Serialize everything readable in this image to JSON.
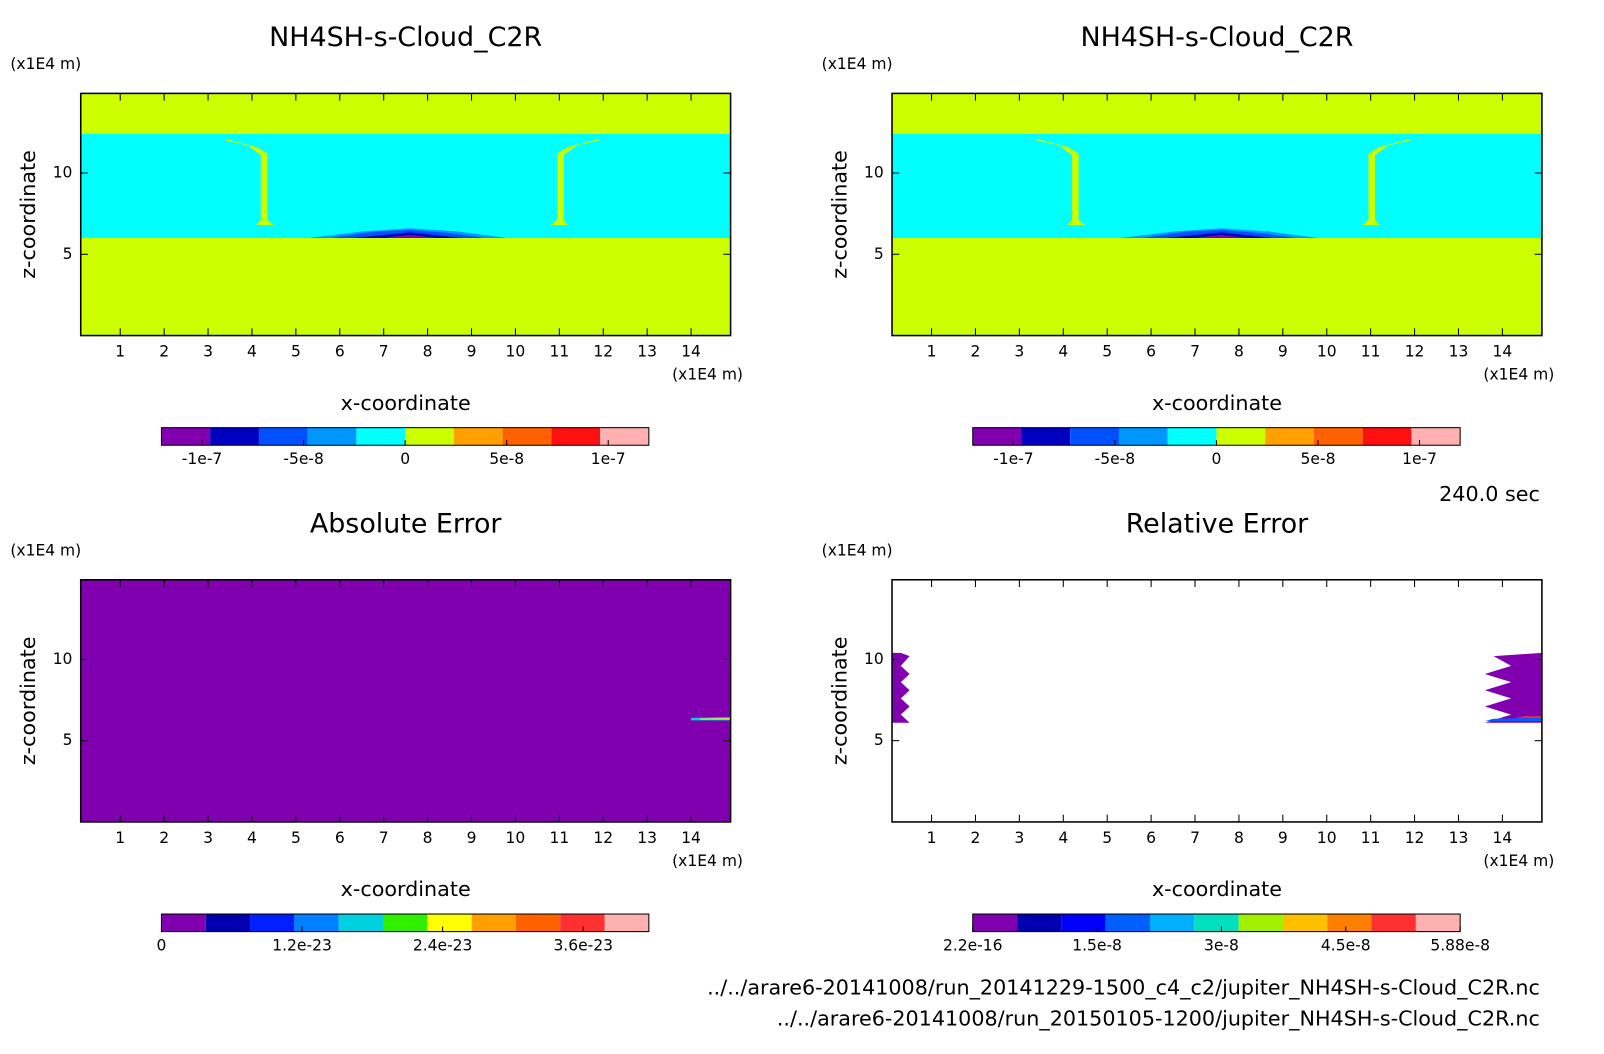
{
  "chart_data": [
    {
      "type": "contour",
      "title": "NH4SH-s-Cloud_C2R",
      "x_label": "x-coordinate",
      "y_label": "z-coordinate",
      "x_unit": "(x1E4 m)",
      "y_unit": "(x1E4 m)",
      "xlim": [
        0.1,
        14.9
      ],
      "ylim": [
        0,
        14.9
      ],
      "xticks": [
        1,
        2,
        3,
        4,
        5,
        6,
        7,
        8,
        9,
        10,
        11,
        12,
        13,
        14
      ],
      "yticks": [
        5,
        10
      ],
      "background": 5,
      "regions": [
        {
          "level": 4,
          "points": [
            [
              0.1,
              6
            ],
            [
              14.9,
              6
            ],
            [
              14.9,
              12.4
            ],
            [
              0.1,
              12.4
            ]
          ]
        },
        {
          "level": 5,
          "points": [
            [
              3.4,
              12.1
            ],
            [
              4.1,
              11.6
            ],
            [
              4.35,
              11.2
            ],
            [
              4.35,
              7.1
            ],
            [
              4.5,
              6.8
            ],
            [
              4.1,
              6.8
            ],
            [
              4.2,
              7.1
            ],
            [
              4.2,
              11.1
            ],
            [
              3.9,
              11.7
            ],
            [
              3.4,
              12.0
            ]
          ]
        },
        {
          "level": 5,
          "points": [
            [
              11.9,
              12.1
            ],
            [
              11.2,
              11.6
            ],
            [
              10.95,
              11.2
            ],
            [
              10.95,
              7.1
            ],
            [
              10.8,
              6.8
            ],
            [
              11.2,
              6.8
            ],
            [
              11.1,
              7.1
            ],
            [
              11.1,
              11.1
            ],
            [
              11.4,
              11.7
            ],
            [
              11.9,
              12.0
            ]
          ]
        },
        {
          "level": 3,
          "points": [
            [
              5.3,
              6
            ],
            [
              6.5,
              6.4
            ],
            [
              7.6,
              6.6
            ],
            [
              8.7,
              6.4
            ],
            [
              9.8,
              6
            ]
          ]
        },
        {
          "level": 2,
          "points": [
            [
              5.8,
              6
            ],
            [
              6.8,
              6.4
            ],
            [
              7.6,
              6.5
            ],
            [
              8.5,
              6.3
            ],
            [
              9.3,
              6
            ]
          ]
        },
        {
          "level": 1,
          "points": [
            [
              6.3,
              6
            ],
            [
              7.6,
              6.35
            ],
            [
              8.8,
              6
            ]
          ]
        },
        {
          "level": 0,
          "points": [
            [
              7,
              6
            ],
            [
              7.6,
              6.2
            ],
            [
              8.2,
              6
            ]
          ]
        }
      ],
      "colorbar": {
        "clim": [
          -1.2e-07,
          1.2e-07
        ],
        "ticks": [
          -1e-07,
          -5e-08,
          0,
          5e-08,
          1e-07
        ],
        "colors": [
          "#8000b0",
          "#0000c0",
          "#0050ff",
          "#0096ff",
          "#00ffff",
          "#ccff00",
          "#ffa000",
          "#ff6000",
          "#ff1010",
          "#ffb0b0"
        ]
      }
    },
    {
      "type": "contour",
      "title": "NH4SH-s-Cloud_C2R",
      "x_label": "x-coordinate",
      "y_label": "z-coordinate",
      "x_unit": "(x1E4 m)",
      "y_unit": "(x1E4 m)",
      "xlim": [
        0.1,
        14.9
      ],
      "ylim": [
        0,
        14.9
      ],
      "xticks": [
        1,
        2,
        3,
        4,
        5,
        6,
        7,
        8,
        9,
        10,
        11,
        12,
        13,
        14
      ],
      "yticks": [
        5,
        10
      ],
      "background": 5,
      "regions": [
        {
          "level": 4,
          "points": [
            [
              0.1,
              6
            ],
            [
              14.9,
              6
            ],
            [
              14.9,
              12.4
            ],
            [
              0.1,
              12.4
            ]
          ]
        },
        {
          "level": 5,
          "points": [
            [
              3.4,
              12.1
            ],
            [
              4.1,
              11.6
            ],
            [
              4.35,
              11.2
            ],
            [
              4.35,
              7.1
            ],
            [
              4.5,
              6.8
            ],
            [
              4.1,
              6.8
            ],
            [
              4.2,
              7.1
            ],
            [
              4.2,
              11.1
            ],
            [
              3.9,
              11.7
            ],
            [
              3.4,
              12.0
            ]
          ]
        },
        {
          "level": 5,
          "points": [
            [
              11.9,
              12.1
            ],
            [
              11.2,
              11.6
            ],
            [
              10.95,
              11.2
            ],
            [
              10.95,
              7.1
            ],
            [
              10.8,
              6.8
            ],
            [
              11.2,
              6.8
            ],
            [
              11.1,
              7.1
            ],
            [
              11.1,
              11.1
            ],
            [
              11.4,
              11.7
            ],
            [
              11.9,
              12.0
            ]
          ]
        },
        {
          "level": 3,
          "points": [
            [
              5.3,
              6
            ],
            [
              6.5,
              6.4
            ],
            [
              7.6,
              6.6
            ],
            [
              8.7,
              6.4
            ],
            [
              9.8,
              6
            ]
          ]
        },
        {
          "level": 2,
          "points": [
            [
              5.8,
              6
            ],
            [
              6.8,
              6.4
            ],
            [
              7.6,
              6.5
            ],
            [
              8.5,
              6.3
            ],
            [
              9.3,
              6
            ]
          ]
        },
        {
          "level": 1,
          "points": [
            [
              6.3,
              6
            ],
            [
              7.6,
              6.35
            ],
            [
              8.8,
              6
            ]
          ]
        },
        {
          "level": 0,
          "points": [
            [
              7,
              6
            ],
            [
              7.6,
              6.2
            ],
            [
              8.2,
              6
            ]
          ]
        }
      ],
      "colorbar": {
        "clim": [
          -1.2e-07,
          1.2e-07
        ],
        "ticks": [
          -1e-07,
          -5e-08,
          0,
          5e-08,
          1e-07
        ],
        "colors": [
          "#8000b0",
          "#0000c0",
          "#0050ff",
          "#0096ff",
          "#00ffff",
          "#ccff00",
          "#ffa000",
          "#ff6000",
          "#ff1010",
          "#ffb0b0"
        ]
      }
    },
    {
      "type": "contour",
      "title": "Absolute Error",
      "x_label": "x-coordinate",
      "y_label": "z-coordinate",
      "x_unit": "(x1E4 m)",
      "y_unit": "(x1E4 m)",
      "xlim": [
        0.1,
        14.9
      ],
      "ylim": [
        0,
        14.9
      ],
      "xticks": [
        1,
        2,
        3,
        4,
        5,
        6,
        7,
        8,
        9,
        10,
        11,
        12,
        13,
        14
      ],
      "yticks": [
        5,
        10
      ],
      "background": 0,
      "regions": [
        {
          "level": 4,
          "points": [
            [
              14,
              6.25
            ],
            [
              14.9,
              6.25
            ],
            [
              14.9,
              6.45
            ],
            [
              14,
              6.4
            ]
          ]
        },
        {
          "level": 6,
          "points": [
            [
              14.2,
              6.3
            ],
            [
              14.9,
              6.3
            ],
            [
              14.9,
              6.38
            ],
            [
              14.2,
              6.36
            ]
          ]
        }
      ],
      "colorbar": {
        "clim": [
          0,
          4.16e-23
        ],
        "ticks": [
          0,
          1.2e-23,
          2.4e-23,
          3.6e-23
        ],
        "colors": [
          "#8000b0",
          "#0000b0",
          "#0020ff",
          "#0080ff",
          "#00d0e0",
          "#30f000",
          "#ffff00",
          "#ffa000",
          "#ff6000",
          "#ff3030",
          "#ffb0b0"
        ]
      }
    },
    {
      "type": "contour",
      "title": "Relative Error",
      "x_label": "x-coordinate",
      "y_label": "z-coordinate",
      "x_unit": "(x1E4 m)",
      "y_unit": "(x1E4 m)",
      "xlim": [
        0.1,
        14.9
      ],
      "ylim": [
        0,
        14.9
      ],
      "xticks": [
        1,
        2,
        3,
        4,
        5,
        6,
        7,
        8,
        9,
        10,
        11,
        12,
        13,
        14
      ],
      "yticks": [
        5,
        10
      ],
      "background": null,
      "regions": [
        {
          "level": 0,
          "points": [
            [
              0.1,
              6.1
            ],
            [
              0.5,
              6.1
            ],
            [
              0.3,
              6.6
            ],
            [
              0.5,
              7.1
            ],
            [
              0.3,
              7.6
            ],
            [
              0.5,
              8.1
            ],
            [
              0.3,
              8.6
            ],
            [
              0.5,
              9.1
            ],
            [
              0.3,
              9.6
            ],
            [
              0.5,
              10.2
            ],
            [
              0.3,
              10.4
            ],
            [
              0.1,
              10.4
            ]
          ]
        },
        {
          "level": 0,
          "points": [
            [
              14.9,
              6.1
            ],
            [
              13.6,
              6.1
            ],
            [
              14.2,
              6.6
            ],
            [
              13.6,
              7.1
            ],
            [
              14.2,
              7.6
            ],
            [
              13.6,
              8.1
            ],
            [
              14.2,
              8.6
            ],
            [
              13.6,
              9.1
            ],
            [
              14.2,
              9.6
            ],
            [
              13.8,
              10.2
            ],
            [
              14.9,
              10.4
            ]
          ]
        },
        {
          "level": 3,
          "points": [
            [
              13.6,
              6.2
            ],
            [
              14.9,
              6.2
            ],
            [
              14.9,
              6.4
            ],
            [
              13.8,
              6.35
            ]
          ]
        },
        {
          "level": 9,
          "points": [
            [
              14.3,
              6.4
            ],
            [
              14.9,
              6.4
            ],
            [
              14.9,
              6.5
            ],
            [
              14.5,
              6.5
            ]
          ]
        }
      ],
      "colorbar": {
        "clim": [
          2.2e-16,
          5.88e-08
        ],
        "ticks": [
          2.2e-16,
          1.5e-08,
          3e-08,
          4.5e-08,
          5.88e-08
        ],
        "colors": [
          "#8000b0",
          "#0000b0",
          "#0000ff",
          "#0060ff",
          "#00b0ff",
          "#00e0c0",
          "#a0f000",
          "#ffc000",
          "#ff8000",
          "#ff3030",
          "#ffb0b0"
        ]
      }
    }
  ],
  "time_label": "240.0 sec",
  "files": [
    "../../arare6-20141008/run_20141229-1500_c4_c2/jupiter_NH4SH-s-Cloud_C2R.nc",
    "../../arare6-20141008/run_20150105-1200/jupiter_NH4SH-s-Cloud_C2R.nc"
  ]
}
